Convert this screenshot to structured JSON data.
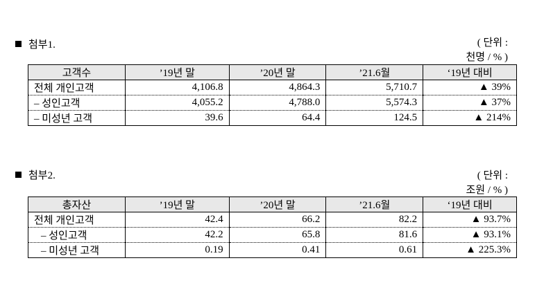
{
  "sections": [
    {
      "title": "첨부1.",
      "unit_line1": "( 단위 :",
      "unit_line2": "천명 / % )",
      "table": {
        "header": [
          "고객수",
          "’19년 말",
          "’20년 말",
          "’21.6월",
          "‘19년 대비"
        ],
        "rows": [
          [
            "전체 개인고객",
            "4,106.8",
            "4,864.3",
            "5,710.7",
            "▲ 39%"
          ],
          [
            "– 성인고객",
            "4,055.2",
            "4,788.0",
            "5,574.3",
            "▲ 37%"
          ],
          [
            "– 미성년 고객",
            "39.6",
            "64.4",
            "124.5",
            "▲ 214%"
          ]
        ]
      }
    },
    {
      "title": "첨부2.",
      "unit_line1": "( 단위 :",
      "unit_line2": "조원 / % )",
      "table": {
        "header": [
          "총자산",
          "’19년 말",
          "’20년 말",
          "’21.6월",
          "‘19년 대비"
        ],
        "rows": [
          [
            "전체 개인고객",
            "42.4",
            "66.2",
            "82.2",
            "▲ 93.7%"
          ],
          [
            "– 성인고객",
            "42.2",
            "65.8",
            "81.6",
            "▲ 93.1%"
          ],
          [
            "– 미성년 고객",
            "0.19",
            "0.41",
            "0.61",
            "▲ 225.3%"
          ]
        ]
      }
    }
  ]
}
